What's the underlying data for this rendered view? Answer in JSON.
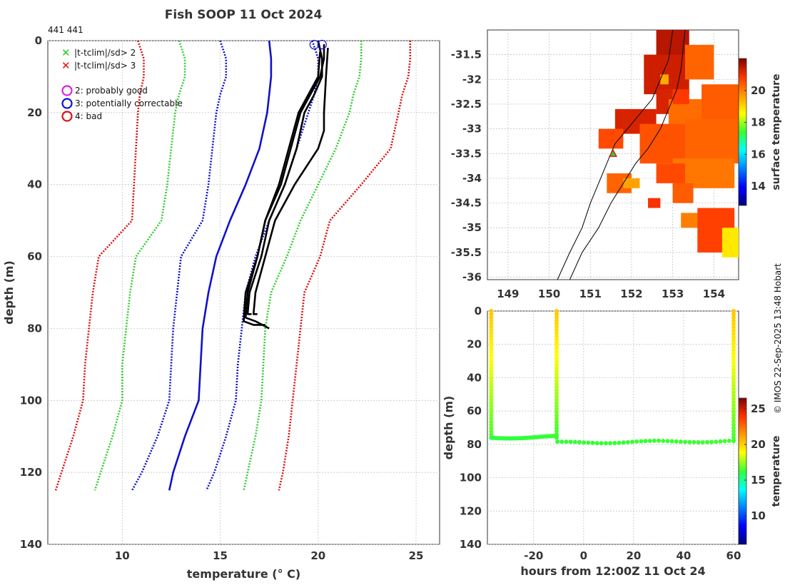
{
  "title": "Fish SOOP 11 Oct 2024",
  "profile_ids": "441 441",
  "copyright": "© IMOS 22-Sep-2025 13:48 Hobart",
  "legend": {
    "flag_2sd": "|t-tclim|/sd> 2",
    "flag_3sd": "|t-tclim|/sd> 3",
    "qc2": "2: probably good",
    "qc3": "3: potentially correctable",
    "qc4": "4: bad"
  },
  "colors": {
    "red": "#dd1111",
    "green": "#33cc33",
    "blue": "#1111cc",
    "black": "#000000",
    "magenta": "#dd22dd",
    "land": "#222222"
  },
  "chart_data": [
    {
      "type": "line",
      "name": "temperature-depth-profile",
      "xlabel": "temperature (° C)",
      "ylabel": "depth (m)",
      "xlim": [
        6.2,
        26.2
      ],
      "ylim": [
        140,
        0
      ],
      "xticks": [
        10,
        15,
        20,
        25
      ],
      "yticks": [
        0,
        20,
        40,
        60,
        80,
        100,
        120,
        140
      ],
      "grid": true,
      "climatology_depths": [
        0,
        5,
        10,
        15,
        20,
        30,
        40,
        50,
        60,
        70,
        80,
        90,
        100,
        110,
        120,
        125
      ],
      "climatology": [
        {
          "name": "clim-minus-3sd",
          "color": "red",
          "dash": true,
          "values": [
            10.8,
            11.1,
            11.1,
            10.9,
            10.8,
            10.7,
            10.6,
            10.5,
            8.8,
            8.5,
            8.3,
            8.1,
            8.0,
            7.5,
            6.9,
            6.6
          ]
        },
        {
          "name": "clim-minus-2sd",
          "color": "green",
          "dash": true,
          "values": [
            12.9,
            13.2,
            13.2,
            12.9,
            12.7,
            12.5,
            12.3,
            12.0,
            10.7,
            10.4,
            10.2,
            10.0,
            10.0,
            9.5,
            8.9,
            8.6
          ]
        },
        {
          "name": "clim-minus-1sd",
          "color": "blue",
          "dash": true,
          "values": [
            15.0,
            15.3,
            15.3,
            15.0,
            14.8,
            14.6,
            14.4,
            14.1,
            13.0,
            12.8,
            12.6,
            12.5,
            12.4,
            11.8,
            11.0,
            10.5
          ]
        },
        {
          "name": "climatology-mean",
          "color": "blue",
          "dash": false,
          "values": [
            17.5,
            17.6,
            17.6,
            17.5,
            17.4,
            17.0,
            16.3,
            15.5,
            14.8,
            14.4,
            14.1,
            14.0,
            13.9,
            13.2,
            12.6,
            12.4
          ]
        },
        {
          "name": "clim-plus-1sd",
          "color": "blue",
          "dash": true,
          "values": [
            19.7,
            20.0,
            20.0,
            19.8,
            19.5,
            18.9,
            18.3,
            17.5,
            16.8,
            16.3,
            16.1,
            15.9,
            15.8,
            15.3,
            14.7,
            14.3
          ]
        },
        {
          "name": "clim-plus-2sd",
          "color": "green",
          "dash": true,
          "values": [
            22.2,
            22.2,
            22.1,
            21.8,
            21.6,
            20.9,
            20.0,
            19.1,
            18.4,
            17.6,
            17.3,
            17.2,
            17.1,
            16.8,
            16.4,
            16.2
          ]
        },
        {
          "name": "clim-plus-3sd",
          "color": "red",
          "dash": true,
          "values": [
            24.7,
            24.7,
            24.6,
            24.3,
            24.1,
            23.7,
            22.2,
            20.6,
            20.1,
            19.3,
            19.1,
            18.9,
            18.7,
            18.5,
            18.2,
            18.0
          ]
        }
      ],
      "profiles": [
        {
          "name": "profile-1",
          "points": [
            [
              20.0,
              0
            ],
            [
              20.2,
              5
            ],
            [
              20.2,
              10
            ],
            [
              19.8,
              15
            ],
            [
              19.3,
              20
            ],
            [
              18.9,
              30
            ],
            [
              18.3,
              40
            ],
            [
              17.5,
              50
            ],
            [
              17.1,
              60
            ],
            [
              16.5,
              70
            ],
            [
              16.4,
              76
            ],
            [
              16.6,
              76
            ]
          ]
        },
        {
          "name": "profile-2",
          "points": [
            [
              20.3,
              1
            ],
            [
              20.3,
              5
            ],
            [
              20.1,
              10
            ],
            [
              19.6,
              15
            ],
            [
              19.1,
              20
            ],
            [
              18.6,
              30
            ],
            [
              18.1,
              40
            ],
            [
              17.3,
              50
            ],
            [
              16.9,
              60
            ],
            [
              16.3,
              70
            ],
            [
              16.2,
              78
            ],
            [
              16.7,
              79
            ],
            [
              17.3,
              79
            ]
          ]
        },
        {
          "name": "profile-3",
          "points": [
            [
              20.5,
              2
            ],
            [
              20.4,
              10
            ],
            [
              20.3,
              20
            ],
            [
              20.3,
              25
            ],
            [
              20.0,
              30
            ],
            [
              18.8,
              40
            ],
            [
              17.8,
              50
            ],
            [
              17.3,
              60
            ],
            [
              16.8,
              70
            ],
            [
              16.7,
              76
            ],
            [
              16.9,
              76
            ]
          ]
        },
        {
          "name": "profile-4",
          "points": [
            [
              20.1,
              3
            ],
            [
              20.0,
              10
            ],
            [
              19.5,
              15
            ],
            [
              19.0,
              20
            ],
            [
              18.5,
              30
            ],
            [
              18.0,
              40
            ],
            [
              17.3,
              50
            ],
            [
              16.9,
              60
            ],
            [
              16.4,
              70
            ],
            [
              16.3,
              77
            ],
            [
              16.8,
              78
            ],
            [
              17.5,
              80
            ]
          ]
        }
      ],
      "surface_markers": [
        [
          19.8,
          0.5
        ],
        [
          20.2,
          0.5
        ]
      ]
    },
    {
      "type": "heatmap",
      "name": "surface-temperature-map",
      "xlim": [
        148.5,
        154.6
      ],
      "ylim": [
        -36.05,
        -31.0
      ],
      "xticks": [
        149,
        150,
        151,
        152,
        153,
        154
      ],
      "yticks": [
        -31.5,
        -32,
        -32.5,
        -33,
        -33.5,
        -34,
        -34.5,
        -35,
        -35.5,
        -36
      ],
      "colorbar_label": "surface temperature",
      "colorbar_range": [
        12.8,
        22
      ],
      "colorbar_ticks": [
        14,
        16,
        18,
        20
      ],
      "cells": [
        [
          152.6,
          -31.0,
          153.4,
          -31.6,
          21.5
        ],
        [
          152.3,
          -31.5,
          153.4,
          -32.3,
          21.3
        ],
        [
          153.3,
          -31.3,
          154.0,
          -32.0,
          20.3
        ],
        [
          152.6,
          -32.2,
          153.0,
          -32.7,
          21.2
        ],
        [
          151.6,
          -32.6,
          152.6,
          -33.1,
          21.2
        ],
        [
          152.9,
          -32.4,
          153.9,
          -33.0,
          20.2
        ],
        [
          153.7,
          -32.1,
          154.6,
          -33.0,
          20.4
        ],
        [
          152.2,
          -32.9,
          153.6,
          -33.7,
          20.5
        ],
        [
          153.3,
          -32.8,
          154.6,
          -33.7,
          20.3
        ],
        [
          151.2,
          -33.0,
          151.8,
          -33.4,
          20.6
        ],
        [
          153.0,
          -33.6,
          154.5,
          -34.2,
          20.1
        ],
        [
          152.6,
          -33.7,
          153.3,
          -34.1,
          20.6
        ],
        [
          151.4,
          -33.9,
          152.0,
          -34.3,
          20.3
        ],
        [
          153.0,
          -34.1,
          153.5,
          -34.5,
          20.4
        ],
        [
          153.2,
          -34.7,
          153.8,
          -35.0,
          20.0
        ],
        [
          153.6,
          -34.6,
          154.5,
          -35.5,
          20.7
        ],
        [
          152.4,
          -34.4,
          152.7,
          -34.6,
          20.9
        ],
        [
          153.0,
          -32.2,
          153.4,
          -32.5,
          20.8
        ],
        [
          152.7,
          -31.9,
          152.9,
          -32.1,
          19.5
        ],
        [
          151.8,
          -34.0,
          152.2,
          -34.2,
          19.6
        ],
        [
          154.2,
          -35.0,
          154.6,
          -35.6,
          18.8
        ]
      ],
      "station_marker": [
        151.55,
        -33.5
      ]
    },
    {
      "type": "scatter",
      "name": "depth-time-series",
      "xlabel": "hours from 12:00Z 11 Oct 24",
      "ylabel": "depth (m)",
      "xlim": [
        -38.5,
        62
      ],
      "ylim": [
        140,
        0
      ],
      "xticks": [
        -20,
        0,
        20,
        40,
        60
      ],
      "yticks": [
        0,
        20,
        40,
        60,
        80,
        100,
        120,
        140
      ],
      "colorbar_label": "temperature",
      "colorbar_range": [
        6,
        26.5
      ],
      "colorbar_ticks": [
        10,
        15,
        20,
        25
      ],
      "segments": [
        {
          "x": [
            -37,
            -37
          ],
          "depth": [
            0,
            76
          ],
          "t": [
            20.2,
            16.5
          ]
        },
        {
          "x": [
            -37,
            -10.8
          ],
          "depth": [
            76,
            75.5
          ],
          "t": [
            16.0,
            16.3
          ]
        },
        {
          "x": [
            -10.8,
            -10.8
          ],
          "depth": [
            76,
            0
          ],
          "t": [
            16.3,
            20.2
          ]
        },
        {
          "x": [
            -10.5,
            60
          ],
          "depth": [
            79,
            78
          ],
          "t": [
            16.2,
            16.4
          ]
        },
        {
          "x": [
            60,
            60
          ],
          "depth": [
            78,
            0
          ],
          "t": [
            16.4,
            20.2
          ]
        }
      ]
    }
  ]
}
